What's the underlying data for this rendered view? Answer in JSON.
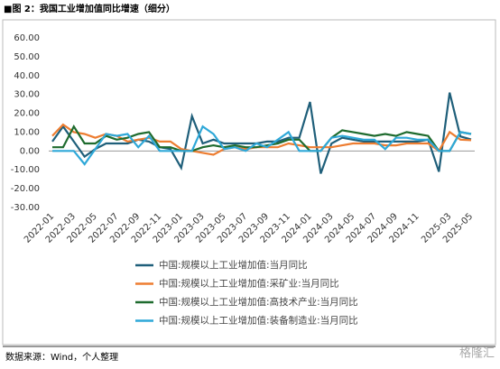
{
  "header": {
    "title": "■图 2：我国工业增加值同比增速（细分）"
  },
  "footer": {
    "source": "数据来源：Wind，个人整理",
    "watermark": "格隆汇"
  },
  "chart_data": {
    "type": "line",
    "categories": [
      "2022-01",
      null,
      "2022-03",
      null,
      "2022-05",
      null,
      "2022-07",
      null,
      "2022-09",
      null,
      "2022-11",
      null,
      "2023-01",
      null,
      "2023-03",
      null,
      "2023-05",
      null,
      "2023-07",
      null,
      "2023-09",
      null,
      "2023-11",
      null,
      "2024-01",
      null,
      "2024-03",
      null,
      "2024-05",
      null,
      "2024-07",
      null,
      "2024-09",
      null,
      "2024-11",
      null,
      null,
      "2025-03",
      null,
      "2025-05"
    ],
    "series": [
      {
        "name": "中国:规模以上工业增加值:当月同比",
        "color": "#1f5f7a",
        "values": [
          5,
          13,
          5,
          -3,
          1,
          4,
          4,
          4,
          6,
          5,
          2,
          1,
          -9,
          18.5,
          4,
          6,
          4,
          4,
          4,
          4,
          5,
          5,
          7,
          7,
          26,
          -12,
          4,
          7,
          6,
          5,
          5,
          5,
          5,
          5,
          5,
          6,
          -11,
          31,
          7.7,
          6.1
        ]
      },
      {
        "name": "中国:规模以上工业增加值:采矿业:当月同比",
        "color": "#ed7d31",
        "values": [
          8,
          14,
          10,
          9,
          7,
          9,
          8,
          5,
          6,
          7,
          5,
          5,
          1,
          0,
          -1,
          -2,
          1,
          2,
          1,
          2,
          2,
          2,
          4,
          3,
          2,
          2,
          2,
          3,
          4,
          4,
          4,
          3,
          3,
          4,
          4,
          4,
          0,
          10,
          6,
          5.7
        ]
      },
      {
        "name": "中国:规模以上工业增加值:高技术产业:当月同比",
        "color": "#1e6b2e",
        "values": [
          2,
          2,
          13,
          4,
          4,
          8,
          6,
          7,
          9,
          10,
          2,
          2,
          0,
          0,
          2,
          3,
          2,
          3,
          2,
          2,
          3,
          4,
          6,
          6,
          0,
          0,
          7,
          11,
          10,
          9,
          8,
          9,
          8,
          10,
          9,
          8,
          0,
          0,
          10,
          9
        ]
      },
      {
        "name": "中国:规模以上工业增加值:装备制造业:当月同比",
        "color": "#2fa8d8",
        "values": [
          0,
          0,
          0,
          -7,
          1,
          9,
          8,
          9,
          2,
          8,
          0,
          0,
          0,
          0,
          13,
          9,
          1,
          2,
          0,
          4,
          2,
          6,
          10,
          0,
          0,
          0,
          7,
          8,
          7,
          6,
          6,
          1,
          7,
          7,
          6,
          6,
          0,
          0,
          10,
          9
        ]
      }
    ],
    "ylim": [
      -30,
      60
    ],
    "yticks": [
      {
        "value": -30,
        "label": "-30.00"
      },
      {
        "value": -20,
        "label": "-20.00"
      },
      {
        "value": -10,
        "label": "-10.00"
      },
      {
        "value": 0,
        "label": "0.00"
      },
      {
        "value": 10,
        "label": "10.00"
      },
      {
        "value": 20,
        "label": "20.00"
      },
      {
        "value": 30,
        "label": "30.00"
      },
      {
        "value": 40,
        "label": "40.00"
      },
      {
        "value": 50,
        "label": "50.00"
      },
      {
        "value": 60,
        "label": "60.00"
      }
    ],
    "grid": false
  }
}
